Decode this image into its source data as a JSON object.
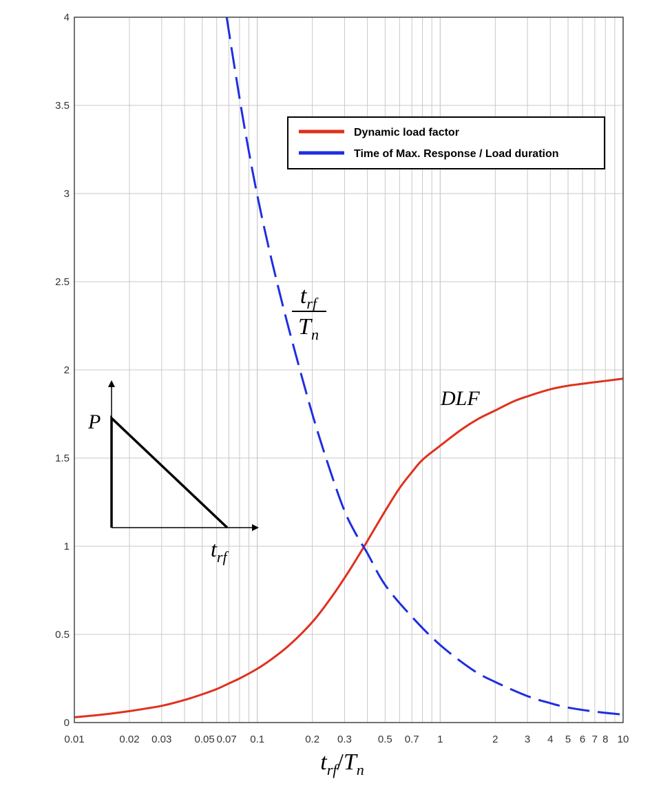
{
  "chart_data": {
    "type": "line",
    "xscale": "log",
    "xlim": [
      0.01,
      10
    ],
    "ylim": [
      0,
      4
    ],
    "grid": true,
    "xlabel": "t_rf / T_n",
    "x_ticks": [
      {
        "value": 0.01,
        "label": "0.01"
      },
      {
        "value": 0.02,
        "label": "0.02"
      },
      {
        "value": 0.03,
        "label": "0.03"
      },
      {
        "value": 0.05,
        "label": "0.05"
      },
      {
        "value": 0.07,
        "label": "0.07"
      },
      {
        "value": 0.1,
        "label": "0.1"
      },
      {
        "value": 0.2,
        "label": "0.2"
      },
      {
        "value": 0.3,
        "label": "0.3"
      },
      {
        "value": 0.5,
        "label": "0.5"
      },
      {
        "value": 0.7,
        "label": "0.7"
      },
      {
        "value": 1,
        "label": "1"
      },
      {
        "value": 2,
        "label": "2"
      },
      {
        "value": 3,
        "label": "3"
      },
      {
        "value": 4,
        "label": "4"
      },
      {
        "value": 5,
        "label": "5"
      },
      {
        "value": 6,
        "label": "6"
      },
      {
        "value": 7,
        "label": "7"
      },
      {
        "value": 8,
        "label": "8"
      },
      {
        "value": 10,
        "label": "10"
      }
    ],
    "y_ticks": [
      {
        "value": 0,
        "label": "0"
      },
      {
        "value": 0.5,
        "label": "0.5"
      },
      {
        "value": 1,
        "label": "1"
      },
      {
        "value": 1.5,
        "label": "1.5"
      },
      {
        "value": 2,
        "label": "2"
      },
      {
        "value": 2.5,
        "label": "2.5"
      },
      {
        "value": 3,
        "label": "3"
      },
      {
        "value": 3.5,
        "label": "3.5"
      },
      {
        "value": 4,
        "label": "4"
      }
    ],
    "legend_position": "top-right",
    "series": [
      {
        "name": "Dynamic load factor",
        "color": "#e0301e",
        "dash": "solid",
        "annotation": "DLF",
        "x": [
          0.01,
          0.015,
          0.02,
          0.03,
          0.04,
          0.05,
          0.06,
          0.07,
          0.08,
          0.1,
          0.12,
          0.15,
          0.2,
          0.25,
          0.3,
          0.35,
          0.4,
          0.5,
          0.6,
          0.7,
          0.8,
          1.0,
          1.3,
          1.6,
          2.0,
          2.5,
          3.0,
          4.0,
          5.0,
          7.0,
          10.0
        ],
        "y": [
          0.03,
          0.048,
          0.065,
          0.095,
          0.128,
          0.16,
          0.19,
          0.222,
          0.25,
          0.305,
          0.36,
          0.44,
          0.57,
          0.7,
          0.82,
          0.93,
          1.03,
          1.2,
          1.33,
          1.42,
          1.49,
          1.57,
          1.66,
          1.72,
          1.77,
          1.82,
          1.85,
          1.89,
          1.91,
          1.93,
          1.95
        ]
      },
      {
        "name": "Time of Max. Response / Load duration",
        "color": "#1e2ee0",
        "dash": "dashed",
        "annotation_top": "t_rf",
        "annotation_bottom": "T_n",
        "x": [
          0.068,
          0.075,
          0.085,
          0.1,
          0.12,
          0.15,
          0.2,
          0.25,
          0.3,
          0.35,
          0.4,
          0.5,
          0.7,
          1.0,
          1.5,
          2.0,
          3.0,
          4.0,
          5.0,
          7.0,
          10.0
        ],
        "y": [
          4.0,
          3.72,
          3.38,
          2.99,
          2.62,
          2.22,
          1.75,
          1.43,
          1.2,
          1.06,
          0.96,
          0.78,
          0.6,
          0.44,
          0.3,
          0.23,
          0.15,
          0.11,
          0.085,
          0.062,
          0.045
        ]
      }
    ],
    "inset": {
      "load_label": "P",
      "duration_label": "t_rf"
    }
  }
}
